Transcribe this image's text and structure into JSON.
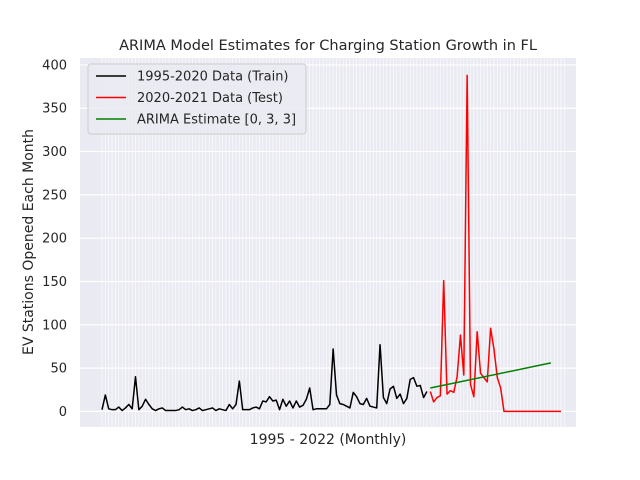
{
  "chart_data": {
    "type": "line",
    "title": "ARIMA Model Estimates for Charging Station Growth in FL",
    "xlabel": "1995 - 2022 (Monthly)",
    "ylabel": "EV Stations Opened Each Month",
    "ylim": [
      -18,
      408
    ],
    "yticks": [
      0,
      50,
      100,
      150,
      200,
      250,
      300,
      350,
      400
    ],
    "x_ticks_labeled": false,
    "grid": true,
    "legend_position": "top-left",
    "series": [
      {
        "name": "1995-2020 Data (Train)",
        "color": "#000000",
        "values": [
          2,
          19,
          3,
          2,
          2,
          5,
          1,
          4,
          8,
          3,
          40,
          2,
          6,
          14,
          8,
          3,
          1,
          3,
          4,
          1,
          1,
          1,
          1,
          2,
          5,
          2,
          3,
          1,
          2,
          4,
          1,
          2,
          3,
          4,
          1,
          3,
          2,
          1,
          8,
          3,
          8,
          35,
          2,
          2,
          2,
          4,
          5,
          3,
          12,
          11,
          17,
          12,
          13,
          2,
          14,
          6,
          12,
          4,
          12,
          5,
          7,
          14,
          27,
          2,
          3,
          3,
          3,
          3,
          8,
          72,
          19,
          9,
          8,
          6,
          4,
          22,
          17,
          9,
          8,
          15,
          6,
          5,
          4,
          77,
          16,
          9,
          26,
          29,
          15,
          20,
          9,
          15,
          37,
          39,
          29,
          30,
          16,
          23
        ]
      },
      {
        "name": "2020-2021 Data (Test)",
        "color": "#ff0000",
        "values": [
          23,
          11,
          16,
          18,
          151,
          20,
          24,
          22,
          40,
          88,
          42,
          388,
          31,
          17,
          92,
          44,
          39,
          34,
          96,
          72,
          39,
          27,
          0,
          0,
          0,
          0,
          0,
          0,
          0,
          0,
          0,
          0,
          0,
          0,
          0,
          0,
          0,
          0,
          0,
          0
        ]
      },
      {
        "name": "ARIMA Estimate [0, 3, 3]",
        "color": "#008000",
        "x_range": [
          98,
          134
        ],
        "values": [
          27,
          56
        ]
      }
    ]
  }
}
